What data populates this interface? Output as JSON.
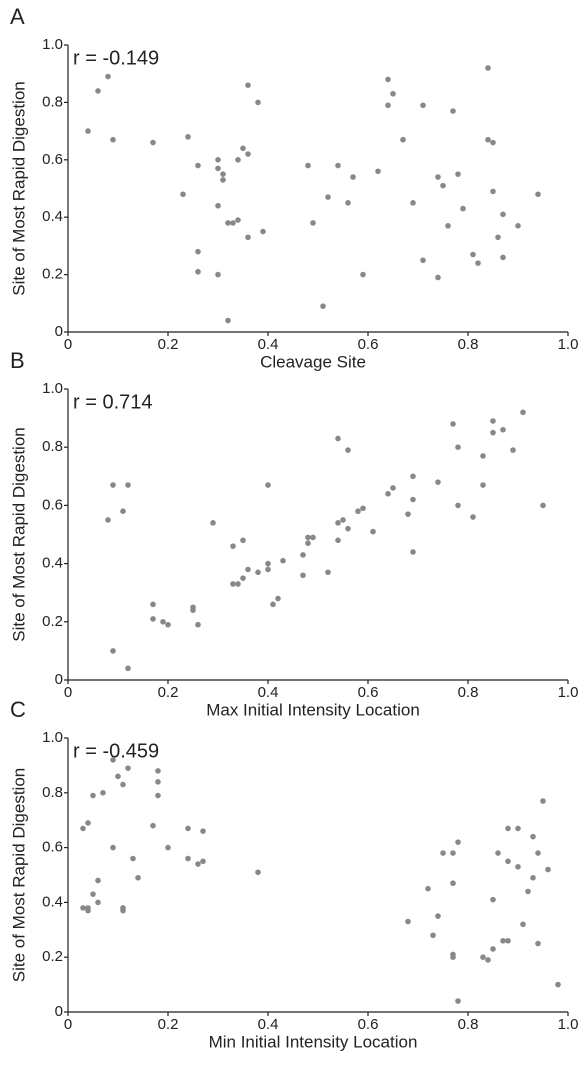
{
  "chart_data": [
    {
      "type": "scatter",
      "panel_label": "A",
      "annotation": "r = -0.149",
      "xlabel": "Cleavage Site",
      "ylabel": "Site of Most Rapid Digestion",
      "color": "#888888",
      "xlim": [
        0,
        1
      ],
      "ylim": [
        0,
        1
      ],
      "xticks": [
        0,
        0.2,
        0.4,
        0.6,
        0.8,
        {
          "value": 1,
          "label": "1.0"
        }
      ],
      "yticks": [
        0,
        0.2,
        0.4,
        0.6,
        0.8,
        {
          "value": 1,
          "label": "1.0"
        }
      ],
      "x": [
        0.04,
        0.06,
        0.08,
        0.09,
        0.17,
        0.23,
        0.24,
        0.26,
        0.26,
        0.26,
        0.3,
        0.3,
        0.3,
        0.31,
        0.31,
        0.3,
        0.32,
        0.32,
        0.33,
        0.34,
        0.34,
        0.35,
        0.36,
        0.36,
        0.36,
        0.38,
        0.39,
        0.48,
        0.49,
        0.51,
        0.52,
        0.54,
        0.56,
        0.57,
        0.59,
        0.62,
        0.64,
        0.64,
        0.65,
        0.67,
        0.69,
        0.71,
        0.71,
        0.74,
        0.75,
        0.74,
        0.76,
        0.77,
        0.78,
        0.79,
        0.81,
        0.82,
        0.84,
        0.84,
        0.85,
        0.85,
        0.86,
        0.87,
        0.87,
        0.9,
        0.94
      ],
      "y": [
        0.7,
        0.84,
        0.89,
        0.67,
        0.66,
        0.48,
        0.68,
        0.58,
        0.28,
        0.21,
        0.2,
        0.6,
        0.57,
        0.55,
        0.53,
        0.44,
        0.38,
        0.04,
        0.38,
        0.39,
        0.6,
        0.64,
        0.86,
        0.62,
        0.33,
        0.8,
        0.35,
        0.58,
        0.38,
        0.09,
        0.47,
        0.58,
        0.45,
        0.54,
        0.2,
        0.56,
        0.88,
        0.79,
        0.83,
        0.67,
        0.45,
        0.79,
        0.25,
        0.54,
        0.51,
        0.19,
        0.37,
        0.77,
        0.55,
        0.43,
        0.27,
        0.24,
        0.92,
        0.67,
        0.66,
        0.49,
        0.33,
        0.41,
        0.26,
        0.37,
        0.48
      ]
    },
    {
      "type": "scatter",
      "panel_label": "B",
      "annotation": "r = 0.714",
      "xlabel": "Max Initial Intensity Location",
      "ylabel": "Site of Most Rapid Digestion",
      "color": "#888888",
      "xlim": [
        0,
        1
      ],
      "ylim": [
        0,
        1
      ],
      "xticks": [
        0,
        0.2,
        0.4,
        0.6,
        0.8,
        {
          "value": 1,
          "label": "1.0"
        }
      ],
      "yticks": [
        0,
        0.2,
        0.4,
        0.6,
        0.8,
        {
          "value": 1,
          "label": "1.0"
        }
      ],
      "x": [
        0.08,
        0.09,
        0.09,
        0.11,
        0.12,
        0.12,
        0.17,
        0.17,
        0.19,
        0.2,
        0.25,
        0.25,
        0.26,
        0.29,
        0.33,
        0.33,
        0.34,
        0.35,
        0.35,
        0.36,
        0.38,
        0.4,
        0.4,
        0.4,
        0.41,
        0.42,
        0.43,
        0.47,
        0.47,
        0.48,
        0.48,
        0.49,
        0.52,
        0.54,
        0.54,
        0.54,
        0.55,
        0.56,
        0.56,
        0.58,
        0.59,
        0.61,
        0.64,
        0.65,
        0.68,
        0.69,
        0.69,
        0.69,
        0.74,
        0.77,
        0.78,
        0.78,
        0.81,
        0.83,
        0.83,
        0.85,
        0.85,
        0.87,
        0.89,
        0.91,
        0.95
      ],
      "y": [
        0.55,
        0.67,
        0.1,
        0.58,
        0.67,
        0.04,
        0.26,
        0.21,
        0.2,
        0.19,
        0.24,
        0.25,
        0.19,
        0.54,
        0.46,
        0.33,
        0.33,
        0.35,
        0.48,
        0.38,
        0.37,
        0.38,
        0.4,
        0.67,
        0.26,
        0.28,
        0.41,
        0.36,
        0.43,
        0.47,
        0.49,
        0.49,
        0.37,
        0.48,
        0.54,
        0.83,
        0.55,
        0.52,
        0.79,
        0.58,
        0.59,
        0.51,
        0.64,
        0.66,
        0.57,
        0.44,
        0.62,
        0.7,
        0.68,
        0.88,
        0.8,
        0.6,
        0.56,
        0.77,
        0.67,
        0.85,
        0.89,
        0.86,
        0.79,
        0.92,
        0.6
      ]
    },
    {
      "type": "scatter",
      "panel_label": "C",
      "annotation": "r = -0.459",
      "xlabel": "Min Initial Intensity Location",
      "ylabel": "Site of Most Rapid Digestion",
      "color": "#888888",
      "xlim": [
        0,
        1
      ],
      "ylim": [
        0,
        1
      ],
      "xticks": [
        0,
        0.2,
        0.4,
        0.6,
        0.8,
        {
          "value": 1,
          "label": "1.0"
        }
      ],
      "yticks": [
        0,
        0.2,
        0.4,
        0.6,
        0.8,
        {
          "value": 1,
          "label": "1.0"
        }
      ],
      "x": [
        0.03,
        0.03,
        0.04,
        0.04,
        0.04,
        0.05,
        0.05,
        0.06,
        0.06,
        0.07,
        0.09,
        0.09,
        0.1,
        0.11,
        0.11,
        0.11,
        0.12,
        0.13,
        0.14,
        0.17,
        0.18,
        0.18,
        0.18,
        0.2,
        0.24,
        0.24,
        0.26,
        0.27,
        0.27,
        0.38,
        0.68,
        0.72,
        0.73,
        0.74,
        0.75,
        0.77,
        0.77,
        0.77,
        0.77,
        0.78,
        0.78,
        0.83,
        0.84,
        0.85,
        0.85,
        0.86,
        0.87,
        0.88,
        0.88,
        0.88,
        0.9,
        0.9,
        0.91,
        0.92,
        0.93,
        0.93,
        0.94,
        0.94,
        0.95,
        0.96,
        0.98
      ],
      "y": [
        0.67,
        0.38,
        0.38,
        0.69,
        0.37,
        0.43,
        0.79,
        0.48,
        0.4,
        0.8,
        0.92,
        0.6,
        0.86,
        0.83,
        0.38,
        0.37,
        0.89,
        0.56,
        0.49,
        0.68,
        0.88,
        0.79,
        0.84,
        0.6,
        0.67,
        0.56,
        0.54,
        0.66,
        0.55,
        0.51,
        0.33,
        0.45,
        0.28,
        0.35,
        0.58,
        0.58,
        0.21,
        0.2,
        0.47,
        0.62,
        0.04,
        0.2,
        0.19,
        0.41,
        0.23,
        0.58,
        0.26,
        0.26,
        0.55,
        0.67,
        0.67,
        0.53,
        0.32,
        0.44,
        0.64,
        0.49,
        0.25,
        0.58,
        0.77,
        0.52,
        0.1
      ]
    }
  ]
}
